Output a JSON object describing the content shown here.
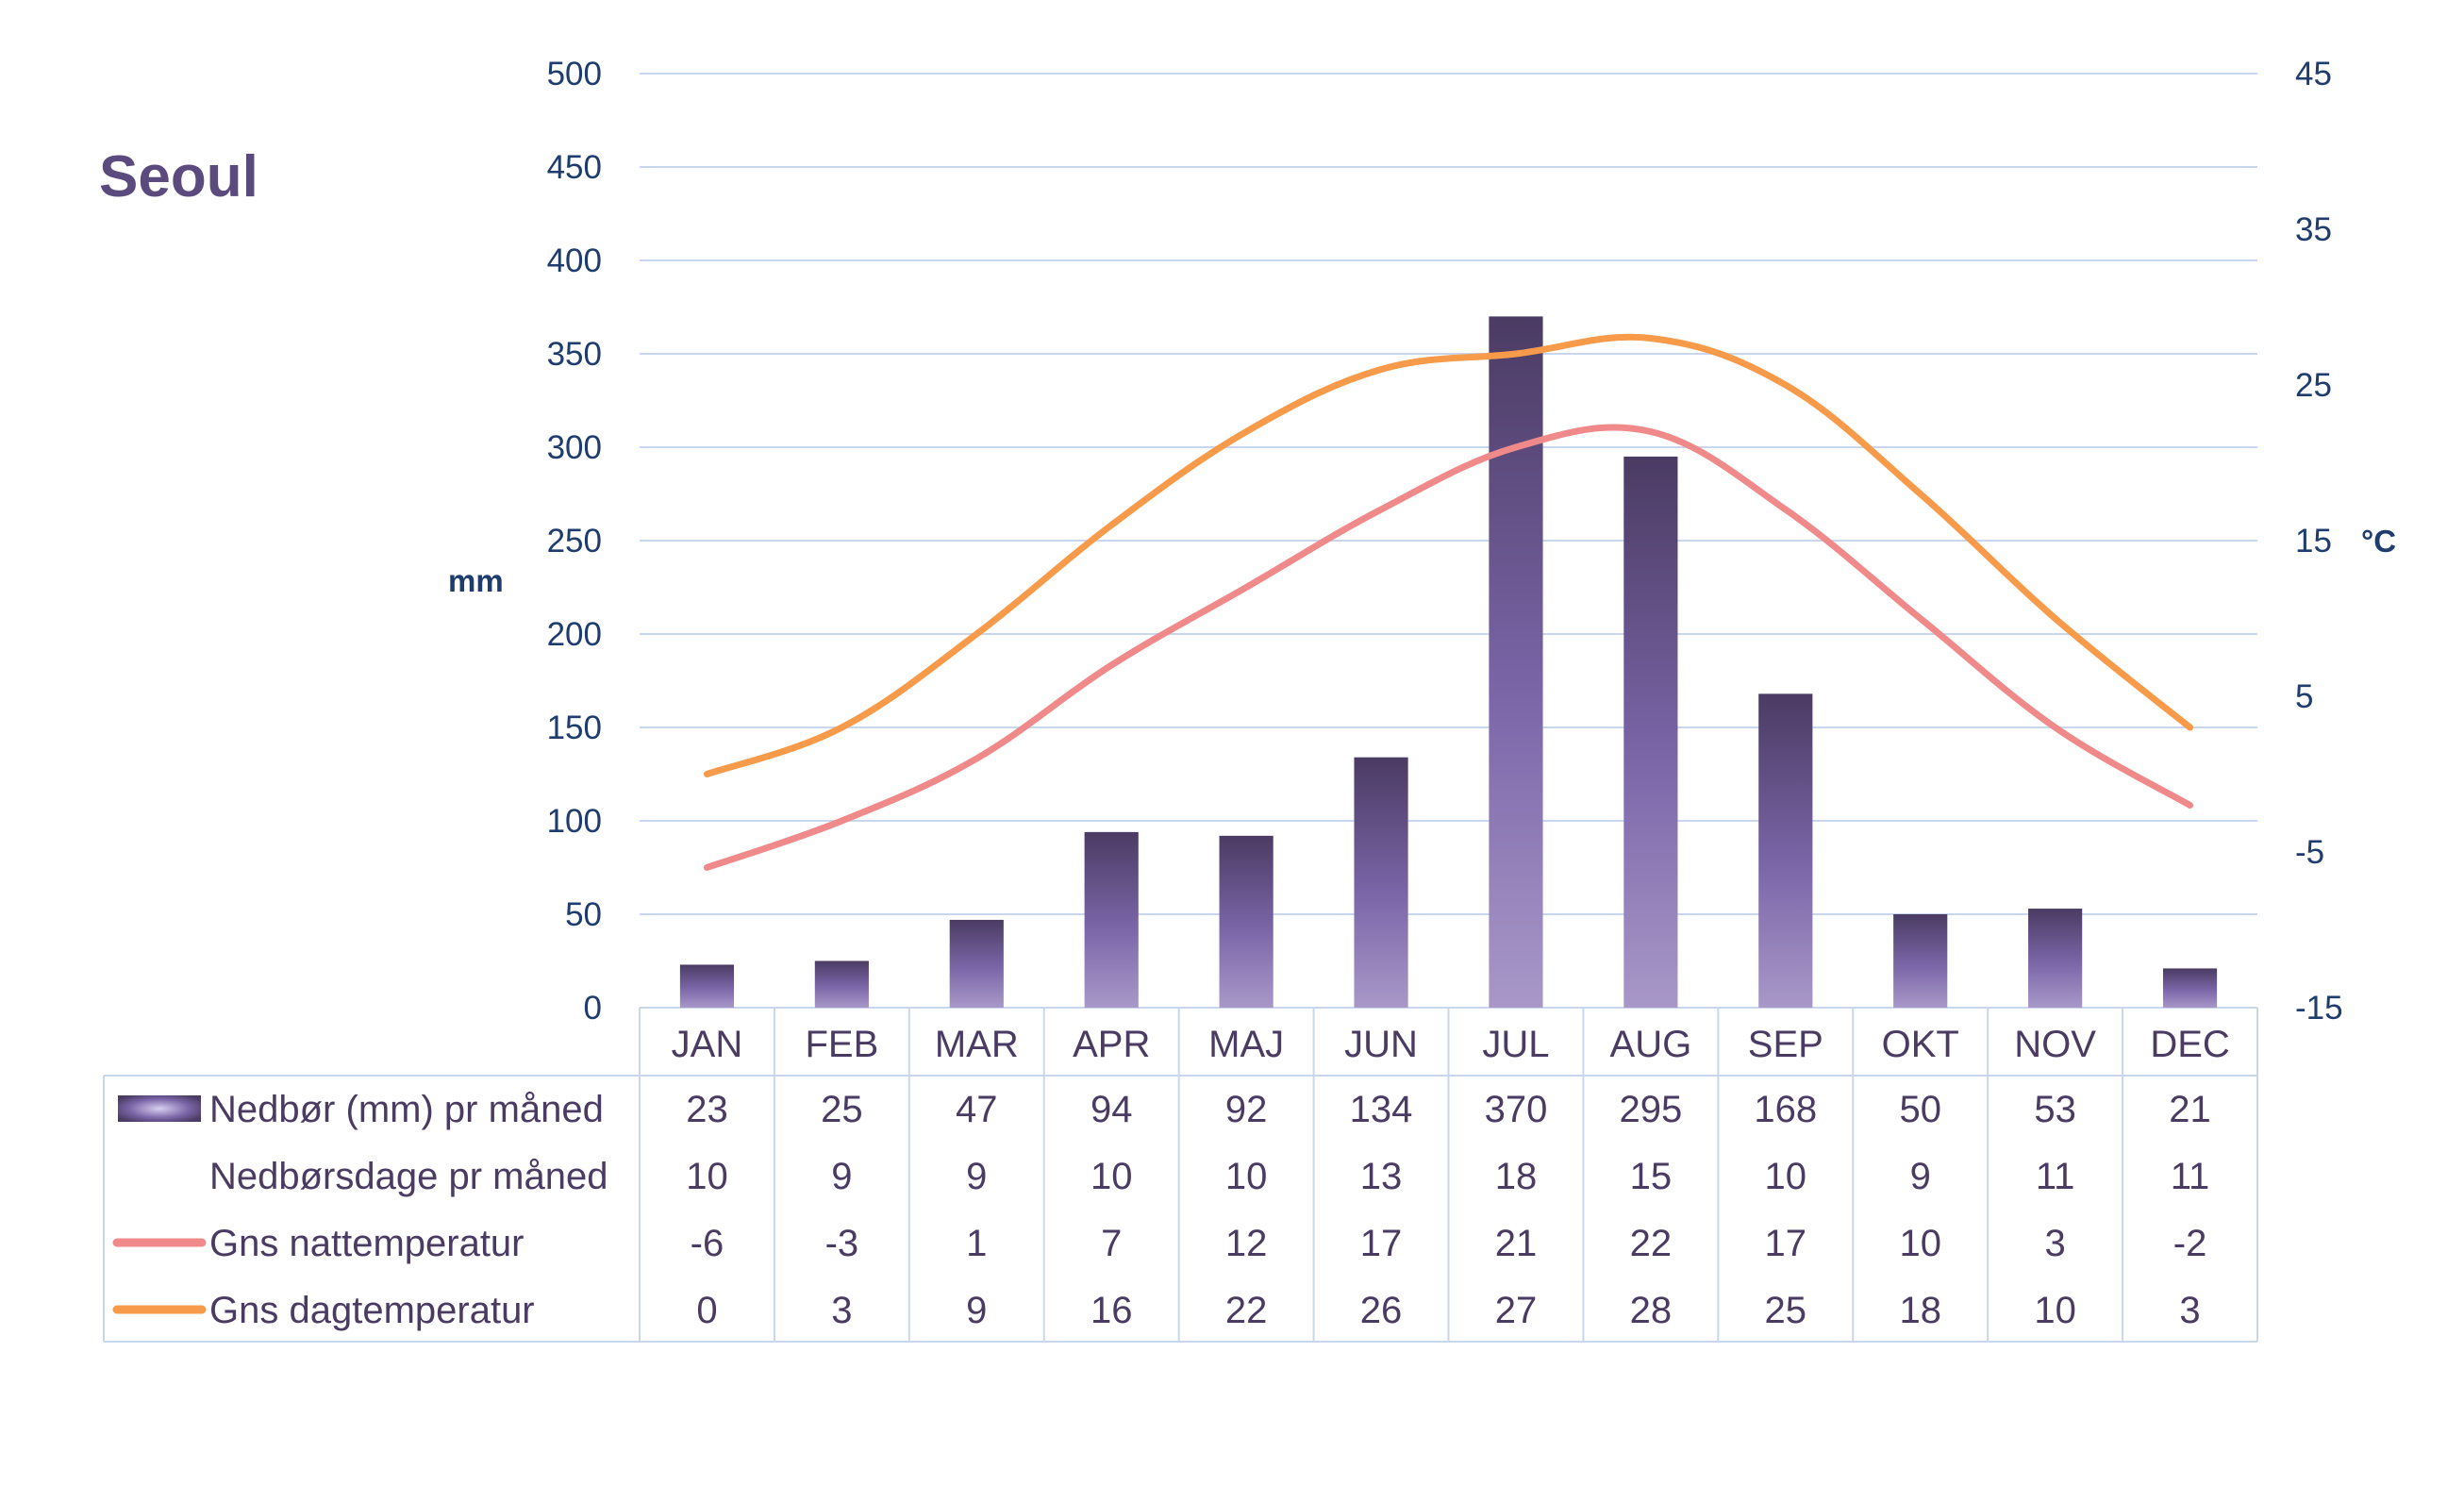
{
  "chart_data": {
    "type": "bar",
    "title": "Seoul",
    "categories": [
      "JAN",
      "FEB",
      "MAR",
      "APR",
      "MAJ",
      "JUN",
      "JUL",
      "AUG",
      "SEP",
      "OKT",
      "NOV",
      "DEC"
    ],
    "y_left": {
      "label": "mm",
      "ylim": [
        0,
        500
      ],
      "ticks": [
        "0",
        "50",
        "100",
        "150",
        "200",
        "250",
        "300",
        "350",
        "400",
        "450",
        "500"
      ]
    },
    "y_right": {
      "label": "°C",
      "ylim": [
        -15,
        45
      ],
      "ticks": [
        "-15",
        "-5",
        "5",
        "15",
        "25",
        "35",
        "45"
      ]
    },
    "grid": true,
    "legend": "data-table",
    "series": [
      {
        "name": "Nedbør (mm) pr måned",
        "type": "bar",
        "axis": "left",
        "values": [
          23,
          25,
          47,
          94,
          92,
          134,
          370,
          295,
          168,
          50,
          53,
          21
        ]
      },
      {
        "name": "Nedbørsdage pr måned",
        "type": "table-only",
        "values": [
          10,
          9,
          9,
          10,
          10,
          13,
          18,
          15,
          10,
          9,
          11,
          11
        ]
      },
      {
        "name": "Gns nattemperatur",
        "type": "line",
        "axis": "right",
        "values": [
          -6,
          -3,
          1,
          7,
          12,
          17,
          21,
          22,
          17,
          10,
          3,
          -2
        ]
      },
      {
        "name": "Gns dagtemperatur",
        "type": "line",
        "axis": "right",
        "values": [
          0,
          3,
          9,
          16,
          22,
          26,
          27,
          28,
          25,
          18,
          10,
          3
        ]
      }
    ]
  },
  "colors": {
    "title": "#5b4a7d",
    "axis_text": "#1f3c6e",
    "table_text": "#4a3b63",
    "grid": "#c9d7ee",
    "bar_top": "#4a3b63",
    "bar_mid": "#7b66a8",
    "bar_bottom": "#a898c8",
    "night_line": "#f08a8a",
    "day_line": "#f79a4a"
  }
}
